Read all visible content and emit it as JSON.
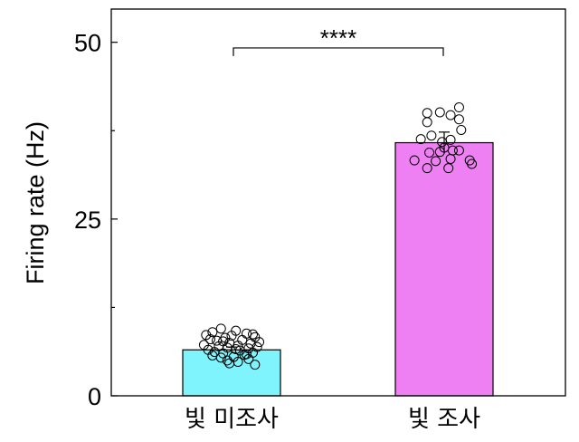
{
  "chart_data": {
    "type": "bar",
    "title": "",
    "xlabel": "",
    "ylabel": "Firing rate (Hz)",
    "ylim": [
      0,
      54.7
    ],
    "yticks": [
      0,
      25,
      50
    ],
    "yminor_ticks": [
      12.5,
      37.5
    ],
    "ytick_labels": [
      "0",
      "25",
      "50"
    ],
    "grid": false,
    "categories": [
      "빛 미조사",
      "빛 조사"
    ],
    "values": [
      6.5,
      35.8
    ],
    "errors": [
      0.4,
      1.5
    ],
    "colors": [
      "#80f4fc",
      "#ef80f4"
    ],
    "significance": {
      "label": "****",
      "between": [
        0,
        1
      ],
      "y": 49.2
    },
    "points": [
      {
        "category": 0,
        "values": [
          9.5,
          9.2,
          9.0,
          8.8,
          8.6,
          8.5,
          8.3,
          8.2,
          8.0,
          7.9,
          7.8,
          7.6,
          7.5,
          7.4,
          7.2,
          7.1,
          7.0,
          6.9,
          6.8,
          6.7,
          6.5,
          6.4,
          6.2,
          6.1,
          6.0,
          5.8,
          5.7,
          5.5,
          5.4,
          5.2,
          5.0,
          4.8,
          4.6,
          4.4,
          8.7,
          7.7,
          6.6,
          5.9
        ],
        "jitter": [
          -0.05,
          0.02,
          -0.09,
          0.07,
          -0.12,
          0.0,
          0.11,
          -0.03,
          -0.1,
          0.05,
          -0.07,
          0.13,
          -0.01,
          0.09,
          -0.13,
          0.03,
          -0.06,
          0.12,
          -0.02,
          0.08,
          -0.11,
          0.04,
          -0.08,
          0.1,
          -0.04,
          0.06,
          -0.09,
          0.01,
          -0.05,
          0.08,
          -0.02,
          0.03,
          -0.01,
          0.11,
          0.1,
          -0.04,
          0.02,
          0.07
        ]
      },
      {
        "category": 1,
        "values": [
          40.0,
          40.1,
          39.7,
          40.8,
          38.7,
          39.1,
          37.6,
          36.3,
          36.8,
          35.9,
          36.2,
          35.1,
          34.4,
          34.5,
          34.7,
          34.7,
          33.3,
          33.2,
          32.2,
          33.5,
          32.2,
          33.3,
          32.8
        ],
        "jitter": [
          -0.08,
          -0.02,
          0.03,
          0.07,
          -0.08,
          0.07,
          0.08,
          -0.11,
          -0.06,
          -0.01,
          0.03,
          0.0,
          -0.07,
          -0.02,
          0.04,
          0.07,
          -0.14,
          -0.04,
          -0.08,
          0.03,
          0.02,
          0.12,
          0.13
        ]
      }
    ]
  }
}
